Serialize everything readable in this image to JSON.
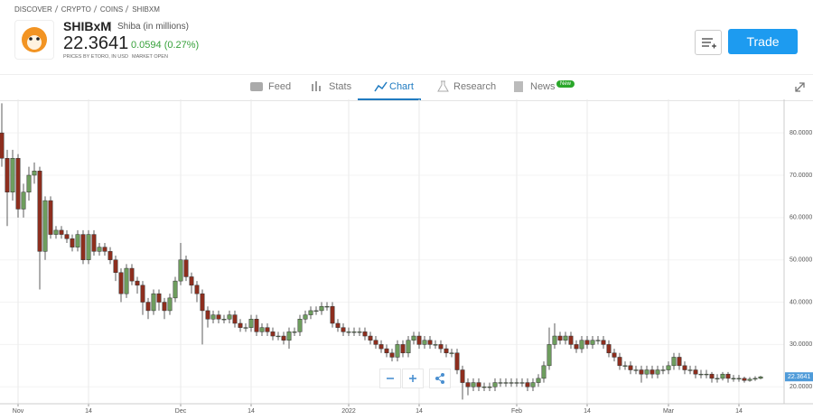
{
  "header": {
    "breadcrumb": [
      "DISCOVER",
      "CRYPTO",
      "COINS",
      "SHIBXM"
    ],
    "symbol": "SHIBxM",
    "name": "Shiba (in millions)",
    "price": "22.3641",
    "change": "0.0594 (0.27%)",
    "note": "PRICES BY ETORO, IN USD",
    "status": "MARKET OPEN",
    "button": "Trade"
  },
  "tabs": {
    "items": [
      "Feed",
      "Stats",
      "Chart",
      "Research",
      "News"
    ],
    "badge": "New"
  },
  "chart_data": {
    "type": "candlestick",
    "up_color": "#6e9e5e",
    "down_color": "#8e2e1e",
    "grid": true,
    "ylim": [
      16,
      87.5
    ],
    "yticks": [
      {
        "value": 20,
        "label": "20.0000"
      },
      {
        "value": 30,
        "label": "30.0000"
      },
      {
        "value": 40,
        "label": "40.0000"
      },
      {
        "value": 50,
        "label": "50.0000"
      },
      {
        "value": 60,
        "label": "60.0000"
      },
      {
        "value": 70,
        "label": "70.0000"
      },
      {
        "value": 80,
        "label": "80.0000"
      }
    ],
    "categories": [
      null,
      null,
      null,
      "Nov",
      null,
      null,
      null,
      null,
      null,
      null,
      null,
      null,
      null,
      null,
      null,
      null,
      "14",
      null,
      null,
      null,
      null,
      null,
      null,
      null,
      null,
      null,
      null,
      null,
      null,
      null,
      null,
      null,
      null,
      "Dec",
      null,
      null,
      null,
      null,
      null,
      null,
      null,
      null,
      null,
      null,
      null,
      null,
      "14",
      null,
      null,
      null,
      null,
      null,
      null,
      null,
      null,
      null,
      null,
      null,
      null,
      null,
      null,
      null,
      null,
      null,
      "2022",
      null,
      null,
      null,
      null,
      null,
      null,
      null,
      null,
      null,
      null,
      null,
      null,
      "14",
      null,
      null,
      null,
      null,
      null,
      null,
      null,
      null,
      null,
      null,
      null,
      null,
      null,
      null,
      null,
      null,
      null,
      "Feb",
      null,
      null,
      null,
      null,
      null,
      null,
      null,
      null,
      null,
      null,
      null,
      null,
      "14",
      null,
      null,
      null,
      null,
      null,
      null,
      null,
      null,
      null,
      null,
      null,
      null,
      null,
      null,
      "Mar",
      null,
      null,
      null,
      null,
      null,
      null,
      null,
      null,
      null,
      null,
      null,
      null,
      "14",
      null,
      null,
      null,
      null
    ],
    "open": [
      80,
      74,
      66,
      74,
      62,
      66,
      70,
      71,
      52,
      64,
      56,
      57,
      56,
      55,
      53,
      56,
      50,
      56,
      52,
      53,
      52,
      50,
      47,
      42,
      48,
      45,
      44,
      40,
      38,
      42,
      40,
      38,
      41,
      45,
      50,
      46,
      44,
      42,
      38,
      36,
      37,
      36,
      36,
      37,
      35,
      34,
      34,
      36,
      33,
      34,
      33,
      32,
      32,
      31,
      33,
      33,
      36,
      37,
      38,
      38,
      39,
      39,
      35,
      34,
      33,
      33,
      33,
      33,
      32,
      31,
      30,
      29,
      28,
      27,
      30,
      28,
      31,
      32,
      30,
      31,
      30,
      30,
      29,
      28,
      28,
      24,
      21,
      20,
      21,
      20,
      20,
      20,
      21,
      21,
      21,
      21,
      21,
      21,
      20,
      21,
      22,
      25,
      30,
      32,
      31,
      32,
      30,
      29,
      31,
      30,
      31,
      31,
      30,
      28,
      27,
      25,
      25,
      24,
      24,
      23,
      24,
      23,
      24,
      24,
      25,
      27,
      25,
      24,
      24,
      23,
      23,
      23,
      22,
      22,
      23,
      22,
      22,
      22,
      21.5,
      21.8,
      22
    ],
    "high": [
      87,
      76,
      76,
      75,
      68,
      72,
      73,
      72,
      65,
      65,
      58,
      58,
      57,
      56,
      57,
      57,
      57,
      57,
      54,
      54,
      53,
      51,
      48,
      49,
      49,
      46,
      45,
      41,
      43,
      43,
      41,
      42,
      46,
      54,
      51,
      47,
      45,
      43,
      39,
      38,
      38,
      37,
      38,
      38,
      36,
      35,
      37,
      37,
      35,
      35,
      34,
      33,
      33,
      34,
      34,
      37,
      38,
      39,
      39,
      40,
      40,
      40,
      36,
      35,
      34,
      34,
      34,
      34,
      33,
      32,
      31,
      30,
      29,
      31,
      31,
      32,
      33,
      33,
      32,
      32,
      31,
      31,
      30,
      29,
      29,
      25,
      22,
      22,
      22,
      21,
      21,
      22,
      22,
      22,
      22,
      22,
      22,
      22,
      22,
      23,
      26,
      34,
      35,
      33,
      33,
      33,
      31,
      32,
      32,
      32,
      32,
      32,
      31,
      29,
      28,
      26,
      26,
      25,
      25,
      25,
      25,
      25,
      25,
      26,
      28,
      28,
      26,
      25,
      25,
      24,
      24,
      23.5,
      23,
      23.5,
      23.5,
      22.8,
      22.8,
      22.4,
      22.3,
      22.5,
      22.6
    ],
    "low": [
      72,
      58,
      64,
      60,
      60,
      64,
      68,
      43,
      50,
      55,
      55,
      55,
      54,
      52,
      52,
      49,
      49,
      51,
      51,
      51,
      49,
      45,
      40,
      41,
      44,
      42,
      37,
      36,
      37,
      38,
      36,
      37,
      40,
      44,
      45,
      42,
      40,
      30,
      34,
      35,
      35,
      35,
      35,
      34,
      33,
      33,
      33,
      32,
      32,
      32,
      31,
      31,
      30,
      29,
      32,
      32,
      35,
      36,
      37,
      37,
      38,
      34,
      33,
      32,
      32,
      32,
      32,
      31,
      30,
      29,
      28,
      27,
      26,
      26,
      27,
      27,
      30,
      29,
      29,
      29,
      29,
      28,
      27,
      27,
      23,
      17,
      18,
      19,
      19,
      19,
      19,
      19,
      20,
      20,
      20,
      20,
      20,
      19,
      19,
      20,
      21,
      24,
      29,
      30,
      30,
      29,
      28,
      28,
      29,
      29,
      30,
      29,
      27,
      26,
      24,
      24,
      23,
      23,
      21,
      22,
      22,
      22,
      23,
      23,
      24,
      24,
      23,
      23,
      22,
      22,
      22,
      21,
      21,
      21.5,
      21,
      21.2,
      21.2,
      21,
      21.2,
      21.4,
      21.8
    ],
    "close": [
      74,
      66,
      74,
      62,
      66,
      70,
      71,
      52,
      64,
      56,
      57,
      56,
      55,
      53,
      56,
      50,
      56,
      52,
      53,
      52,
      50,
      47,
      42,
      48,
      45,
      44,
      40,
      38,
      42,
      40,
      38,
      41,
      45,
      50,
      46,
      44,
      42,
      38,
      36,
      37,
      36,
      36,
      37,
      35,
      34,
      34,
      36,
      33,
      34,
      33,
      32,
      32,
      31,
      33,
      33,
      36,
      37,
      38,
      38,
      39,
      39,
      35,
      34,
      33,
      33,
      33,
      33,
      32,
      31,
      30,
      29,
      28,
      27,
      30,
      28,
      31,
      32,
      30,
      31,
      30,
      30,
      29,
      28,
      28,
      24,
      21,
      20,
      21,
      20,
      20,
      20,
      21,
      21,
      21,
      21,
      21,
      21,
      20,
      21,
      22,
      25,
      30,
      32,
      31,
      32,
      30,
      29,
      31,
      30,
      31,
      31,
      30,
      28,
      27,
      25,
      25,
      24,
      24,
      23,
      24,
      23,
      24,
      24,
      25,
      27,
      25,
      24,
      24,
      23,
      23,
      23,
      22,
      22,
      23,
      22,
      22,
      22,
      21.5,
      21.8,
      22,
      22.36
    ]
  }
}
